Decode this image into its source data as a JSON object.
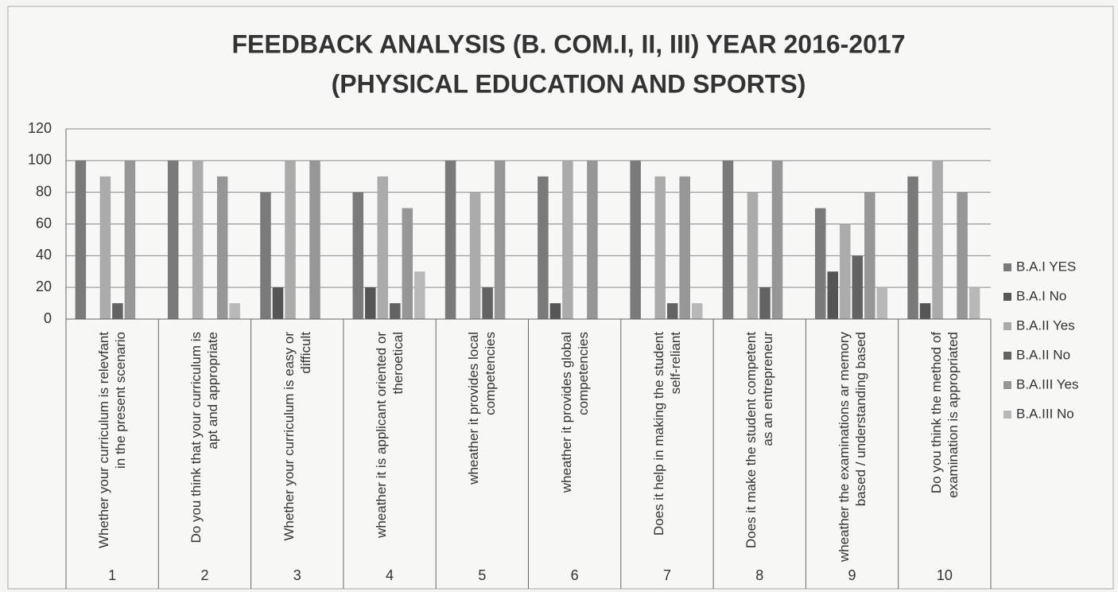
{
  "chart_data": {
    "type": "bar",
    "title": "FEEDBACK ANALYSIS   (B. COM.I, II, III) YEAR 2016-2017",
    "subtitle": "(PHYSICAL EDUCATION AND SPORTS)",
    "categories": [
      "Whether your curriculum is relevfant in the present scenario",
      "Do you think that your curriculum is apt and appropriate",
      "Whether your curriculum is easy or difficult",
      "wheather it is applicant oriented or theroetical",
      "wheather it provides local competencies",
      "wheather it provides global competencies",
      "Does it help in making the student self-reliant",
      "Does it make the student competent as an entrepreneur",
      "wheather the examinations ar memory based / understanding based",
      "Do you think the method of examination is appropriated"
    ],
    "category_numbers": [
      "1",
      "2",
      "3",
      "4",
      "5",
      "6",
      "7",
      "8",
      "9",
      "10"
    ],
    "series": [
      {
        "name": "B.A.I YES",
        "color": "#7a7a7a",
        "values": [
          100,
          100,
          80,
          80,
          100,
          90,
          100,
          100,
          70,
          90
        ]
      },
      {
        "name": "B.A.I No",
        "color": "#555555",
        "values": [
          0,
          0,
          20,
          20,
          0,
          10,
          0,
          0,
          30,
          10
        ]
      },
      {
        "name": "B.A.II Yes",
        "color": "#ababab",
        "values": [
          90,
          100,
          100,
          90,
          80,
          100,
          90,
          80,
          60,
          100
        ]
      },
      {
        "name": "B.A.II No",
        "color": "#636363",
        "values": [
          10,
          0,
          0,
          10,
          20,
          0,
          10,
          20,
          40,
          0
        ]
      },
      {
        "name": "B.A.III Yes",
        "color": "#969696",
        "values": [
          100,
          90,
          100,
          70,
          100,
          100,
          90,
          100,
          80,
          80
        ]
      },
      {
        "name": "B.A.III No",
        "color": "#b8b8b8",
        "values": [
          0,
          10,
          0,
          30,
          0,
          0,
          10,
          0,
          20,
          20
        ]
      }
    ],
    "ylim": [
      0,
      120
    ],
    "yticks": [
      0,
      20,
      40,
      60,
      80,
      100,
      120
    ],
    "grid": true,
    "legend": "right"
  }
}
